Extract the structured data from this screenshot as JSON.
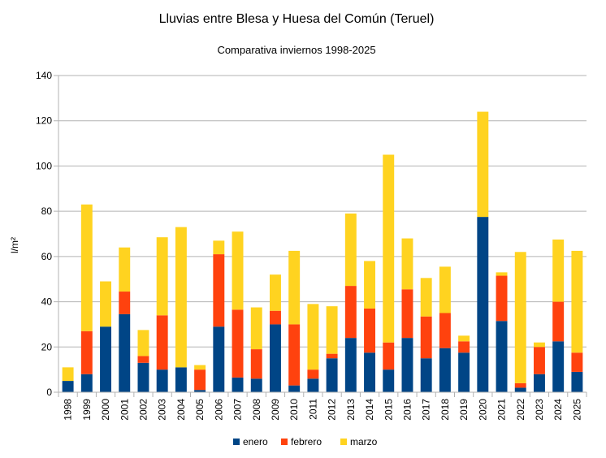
{
  "chart_data": {
    "type": "bar",
    "stacked": true,
    "title": "Lluvias entre Blesa y Huesa del Común (Teruel)",
    "subtitle": "Comparativa inviernos 1998-2025",
    "ylabel": "l/m²",
    "ylim": [
      0,
      140
    ],
    "yticks": [
      0,
      20,
      40,
      60,
      80,
      100,
      120,
      140
    ],
    "grid": true,
    "legend_position": "bottom",
    "categories": [
      "1998",
      "1999",
      "2000",
      "2001",
      "2002",
      "2003",
      "2004",
      "2005",
      "2006",
      "2007",
      "2008",
      "2009",
      "2010",
      "2011",
      "2012",
      "2013",
      "2014",
      "2015",
      "2016",
      "2017",
      "2018",
      "2019",
      "2020",
      "2021",
      "2022",
      "2023",
      "2024",
      "2025"
    ],
    "series": [
      {
        "name": "enero",
        "color": "#004586",
        "values": [
          5,
          8,
          29,
          34.5,
          13,
          10,
          11,
          1,
          29,
          6.5,
          6,
          30,
          3,
          6,
          15,
          24,
          17.5,
          10,
          24,
          15,
          19.5,
          17.5,
          77.5,
          31.5,
          2,
          8,
          22.5,
          9
        ]
      },
      {
        "name": "febrero",
        "color": "#ff420e",
        "values": [
          0,
          19,
          0,
          10,
          3,
          24,
          0,
          9,
          32,
          30,
          13,
          6,
          27,
          4,
          2,
          23,
          19.5,
          12,
          21.5,
          18.5,
          15.5,
          5,
          0,
          20,
          2,
          12,
          17.5,
          8.5
        ]
      },
      {
        "name": "marzo",
        "color": "#ffd320",
        "values": [
          6,
          56,
          20,
          19.5,
          11.5,
          34.5,
          62,
          2,
          6,
          34.5,
          18.5,
          16,
          32.5,
          29,
          21,
          32,
          21,
          83,
          22.5,
          17,
          20.5,
          2.5,
          46.5,
          1.5,
          58,
          2,
          27.5,
          45
        ]
      }
    ]
  }
}
